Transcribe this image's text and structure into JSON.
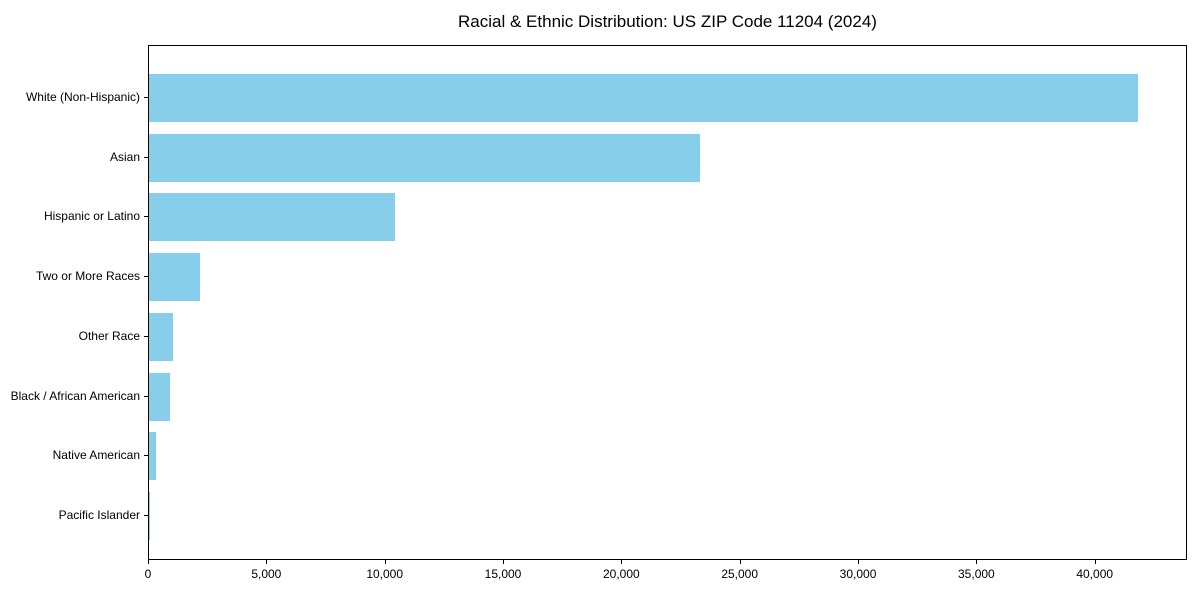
{
  "chart_data": {
    "type": "bar",
    "orientation": "horizontal",
    "title": "Racial & Ethnic Distribution: US ZIP Code 11204 (2024)",
    "categories": [
      "White (Non-Hispanic)",
      "Asian",
      "Hispanic or Latino",
      "Two or More Races",
      "Other Race",
      "Black / African American",
      "Native American",
      "Pacific Islander"
    ],
    "values": [
      41800,
      23300,
      10400,
      2150,
      1030,
      890,
      310,
      20
    ],
    "xlabel": "",
    "ylabel": "",
    "xlim": [
      0,
      43900
    ],
    "x_ticks": [
      0,
      5000,
      10000,
      15000,
      20000,
      25000,
      30000,
      35000,
      40000
    ],
    "x_tick_labels": [
      "0",
      "5,000",
      "10,000",
      "15,000",
      "20,000",
      "25,000",
      "30,000",
      "35,000",
      "40,000"
    ],
    "bar_color": "#87CEEB",
    "grid": false,
    "legend_position": "none"
  }
}
